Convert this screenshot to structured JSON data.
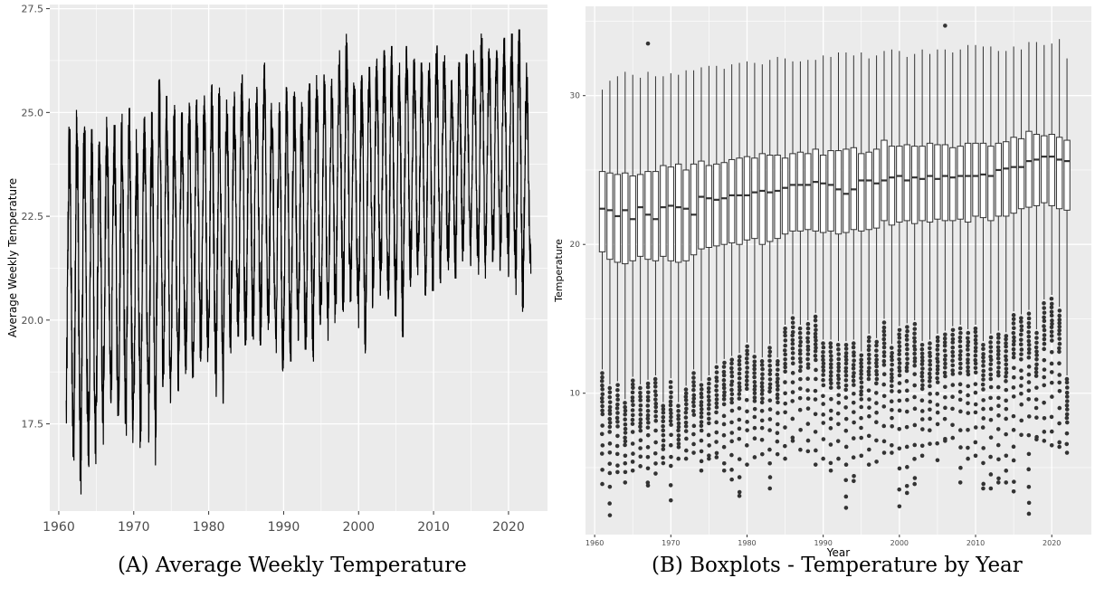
{
  "captions": {
    "a": "(A) Average Weekly Temperature",
    "b": "(B) Boxplots - Temperature by Year"
  },
  "colors": {
    "panel_bg": "#ebebeb",
    "grid": "#ffffff",
    "line": "#000000",
    "box_stroke": "#333333",
    "outlier": "#333333",
    "tick_text": "#4d4d4d"
  },
  "chart_data": [
    {
      "type": "line",
      "title": "",
      "xlabel": "",
      "ylabel": "Average Weekly Temperature",
      "xlim": [
        1958.8,
        2025.2
      ],
      "ylim": [
        15.4,
        27.6
      ],
      "xticks": [
        1960,
        1970,
        1980,
        1990,
        2000,
        2010,
        2020
      ],
      "yticks": [
        17.5,
        20.0,
        22.5,
        25.0,
        27.5
      ],
      "ytick_labels": [
        "17.5",
        "20.0",
        "22.5",
        "25.0",
        "27.5"
      ],
      "grid": true,
      "series": [
        {
          "values_by_year": {
            "years": [
              1961,
              1962,
              1963,
              1964,
              1965,
              1966,
              1967,
              1968,
              1969,
              1970,
              1971,
              1972,
              1973,
              1974,
              1975,
              1976,
              1977,
              1978,
              1979,
              1980,
              1981,
              1982,
              1983,
              1984,
              1985,
              1986,
              1987,
              1988,
              1989,
              1990,
              1991,
              1992,
              1993,
              1994,
              1995,
              1996,
              1997,
              1998,
              1999,
              2000,
              2001,
              2002,
              2003,
              2004,
              2005,
              2006,
              2007,
              2008,
              2009,
              2010,
              2011,
              2012,
              2013,
              2014,
              2015,
              2016,
              2017,
              2018,
              2019,
              2020,
              2021,
              2022
            ],
            "annual_max": [
              24.7,
              25.1,
              24.9,
              24.6,
              24.3,
              24.9,
              24.7,
              25.0,
              25.1,
              24.6,
              24.9,
              25.0,
              25.8,
              25.4,
              25.2,
              25.0,
              25.3,
              25.3,
              25.5,
              25.7,
              25.6,
              25.3,
              25.5,
              25.9,
              25.7,
              25.8,
              26.2,
              25.4,
              25.3,
              25.6,
              25.5,
              25.3,
              25.7,
              25.9,
              25.9,
              25.8,
              26.5,
              26.9,
              26.0,
              25.9,
              26.1,
              26.3,
              26.5,
              26.6,
              26.2,
              26.6,
              26.3,
              26.2,
              26.2,
              26.6,
              26.4,
              25.9,
              26.2,
              26.4,
              26.5,
              26.9,
              26.6,
              26.5,
              26.8,
              26.9,
              27.0,
              26.2
            ],
            "annual_min": [
              16.7,
              15.8,
              16.5,
              16.3,
              17.0,
              18.0,
              17.7,
              17.5,
              17.0,
              16.9,
              18.3,
              16.5,
              18.4,
              18.0,
              18.3,
              18.7,
              18.5,
              19.0,
              18.8,
              18.7,
              18.0,
              19.2,
              19.6,
              19.4,
              19.5,
              19.4,
              19.6,
              19.2,
              18.6,
              19.0,
              19.5,
              19.3,
              19.0,
              19.8,
              19.5,
              19.9,
              20.2,
              20.0,
              20.4,
              19.2,
              20.3,
              20.6,
              20.4,
              20.1,
              19.6,
              20.8,
              20.9,
              20.6,
              20.7,
              20.9,
              21.2,
              21.0,
              21.4,
              21.3,
              21.5,
              21.0,
              21.4,
              21.2,
              21.6,
              21.0,
              20.2,
              20.9
            ]
          }
        }
      ]
    },
    {
      "type": "box",
      "title": "",
      "xlabel": "Year",
      "ylabel": "Temperature",
      "xlim": [
        1958.8,
        2025.2
      ],
      "ylim": [
        0.5,
        36.0
      ],
      "xticks": [
        1960,
        1970,
        1980,
        1990,
        2000,
        2010,
        2020
      ],
      "yticks": [
        10,
        20,
        30
      ],
      "grid": true,
      "boxes": {
        "years": [
          1961,
          1962,
          1963,
          1964,
          1965,
          1966,
          1967,
          1968,
          1969,
          1970,
          1971,
          1972,
          1973,
          1974,
          1975,
          1976,
          1977,
          1978,
          1979,
          1980,
          1981,
          1982,
          1983,
          1984,
          1985,
          1986,
          1987,
          1988,
          1989,
          1990,
          1991,
          1992,
          1993,
          1994,
          1995,
          1996,
          1997,
          1998,
          1999,
          2000,
          2001,
          2002,
          2003,
          2004,
          2005,
          2006,
          2007,
          2008,
          2009,
          2010,
          2011,
          2012,
          2013,
          2014,
          2015,
          2016,
          2017,
          2018,
          2019,
          2020,
          2021,
          2022
        ],
        "q1": [
          19.5,
          19.0,
          18.8,
          18.7,
          18.9,
          19.2,
          19.0,
          18.9,
          19.2,
          18.9,
          18.8,
          18.9,
          19.3,
          19.7,
          19.8,
          19.9,
          20.0,
          20.1,
          20.0,
          20.3,
          20.4,
          20.0,
          20.2,
          20.4,
          20.7,
          20.9,
          20.9,
          21.0,
          20.9,
          20.8,
          20.9,
          20.7,
          20.8,
          21.0,
          20.9,
          21.0,
          21.1,
          21.6,
          21.3,
          21.5,
          21.6,
          21.4,
          21.6,
          21.5,
          21.7,
          21.6,
          21.6,
          21.7,
          21.5,
          21.9,
          21.8,
          21.6,
          21.9,
          21.9,
          22.1,
          22.4,
          22.5,
          22.6,
          22.8,
          22.6,
          22.4,
          22.3
        ],
        "median": [
          22.4,
          22.3,
          21.9,
          22.3,
          21.7,
          22.5,
          22.0,
          21.7,
          22.5,
          22.6,
          22.5,
          22.4,
          22.0,
          23.2,
          23.1,
          23.0,
          23.1,
          23.3,
          23.3,
          23.3,
          23.5,
          23.6,
          23.5,
          23.6,
          23.8,
          24.0,
          24.0,
          24.0,
          24.2,
          24.1,
          24.0,
          23.7,
          23.4,
          23.7,
          24.3,
          24.3,
          24.1,
          24.3,
          24.5,
          24.6,
          24.3,
          24.5,
          24.4,
          24.6,
          24.4,
          24.6,
          24.5,
          24.6,
          24.6,
          24.6,
          24.7,
          24.6,
          25.0,
          25.1,
          25.2,
          25.2,
          25.6,
          25.7,
          25.9,
          25.9,
          25.7,
          25.6
        ],
        "q3": [
          24.9,
          24.8,
          24.7,
          24.8,
          24.6,
          24.7,
          24.9,
          24.9,
          25.3,
          25.2,
          25.4,
          25.0,
          25.4,
          25.6,
          25.3,
          25.4,
          25.5,
          25.7,
          25.8,
          25.9,
          25.8,
          26.1,
          26.0,
          26.0,
          25.8,
          26.1,
          26.2,
          26.1,
          26.4,
          26.0,
          26.3,
          26.3,
          26.4,
          26.5,
          26.1,
          26.2,
          26.4,
          27.0,
          26.6,
          26.6,
          26.7,
          26.6,
          26.6,
          26.8,
          26.7,
          26.7,
          26.5,
          26.6,
          26.8,
          26.8,
          26.8,
          26.6,
          26.8,
          26.9,
          27.2,
          27.1,
          27.6,
          27.4,
          27.3,
          27.4,
          27.2,
          27.0
        ],
        "upper_whisker": [
          30.4,
          31.0,
          31.3,
          31.6,
          31.4,
          31.2,
          31.6,
          31.3,
          31.3,
          31.5,
          31.4,
          31.7,
          31.7,
          31.9,
          32.0,
          32.0,
          31.8,
          32.1,
          32.2,
          32.3,
          32.2,
          32.1,
          32.4,
          32.6,
          32.5,
          32.3,
          32.3,
          32.4,
          32.4,
          32.7,
          32.6,
          32.9,
          32.9,
          32.7,
          32.9,
          32.5,
          32.7,
          33.0,
          33.1,
          33.0,
          32.6,
          32.8,
          33.1,
          32.8,
          33.1,
          33.1,
          32.9,
          33.1,
          33.4,
          33.4,
          33.3,
          33.3,
          33.0,
          33.0,
          33.3,
          33.1,
          33.6,
          33.6,
          33.4,
          33.5,
          33.8,
          32.5
        ],
        "lower_whisker": [
          11.6,
          10.6,
          10.8,
          9.6,
          11.1,
          10.6,
          10.9,
          11.2,
          9.4,
          11.0,
          9.4,
          10.5,
          11.6,
          10.8,
          11.2,
          12.0,
          12.3,
          12.5,
          12.7,
          13.4,
          12.7,
          12.4,
          13.3,
          12.4,
          14.6,
          15.3,
          14.6,
          14.9,
          15.4,
          13.6,
          13.6,
          13.5,
          13.5,
          13.6,
          12.8,
          14.0,
          13.7,
          15.0,
          13.3,
          14.5,
          14.7,
          14.9,
          13.5,
          13.6,
          14.0,
          14.2,
          14.5,
          14.6,
          14.3,
          14.6,
          13.5,
          14.0,
          14.2,
          14.1,
          15.5,
          15.3,
          15.6,
          14.3,
          16.3,
          16.6,
          15.8,
          11.2
        ],
        "outlier_min": [
          3.9,
          1.8,
          4.7,
          4.0,
          4.8,
          5.1,
          3.8,
          4.6,
          5.3,
          2.8,
          5.6,
          5.6,
          6.0,
          4.8,
          5.6,
          5.7,
          4.8,
          4.2,
          3.1,
          5.2,
          5.7,
          5.9,
          3.6,
          5.9,
          5.6,
          6.8,
          6.2,
          6.1,
          5.2,
          5.6,
          4.8,
          5.6,
          2.3,
          4.1,
          5.8,
          5.2,
          5.4,
          6.0,
          6.0,
          2.4,
          3.3,
          3.9,
          5.8,
          6.6,
          5.5,
          6.8,
          7.0,
          4.0,
          5.6,
          5.8,
          3.6,
          3.6,
          4.0,
          4.0,
          3.4,
          7.2,
          1.9,
          6.9,
          6.8,
          6.5,
          6.4,
          6.0
        ],
        "outlier_high": [
          {
            "year": 1967,
            "value": 33.5
          },
          {
            "year": 2006,
            "value": 34.7
          }
        ]
      }
    }
  ]
}
